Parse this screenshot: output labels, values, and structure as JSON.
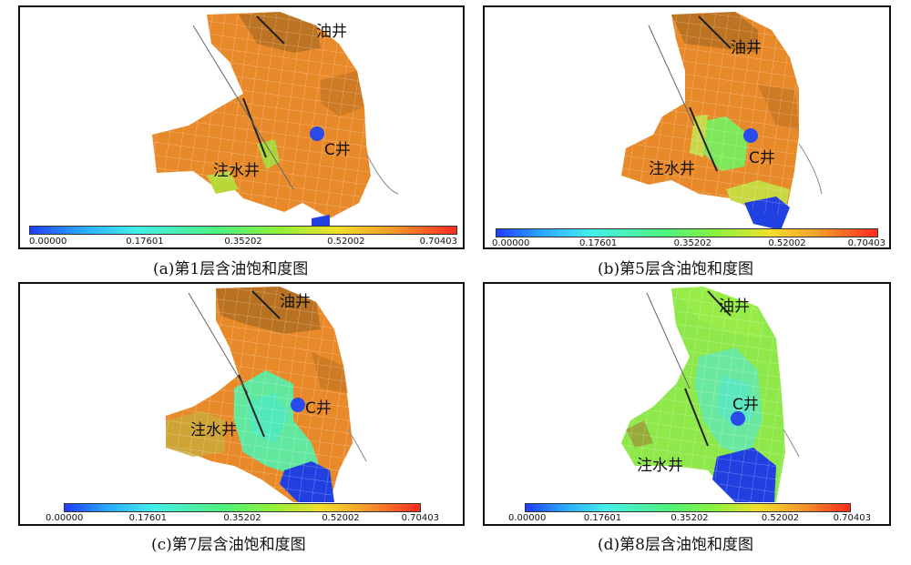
{
  "panels": [
    {
      "id": "a",
      "caption": "(a)第1层含油饱和度图",
      "labels": {
        "oil_well": "油井",
        "c_well": "C井",
        "injection_well": "注水井"
      },
      "colorbar_ticks": [
        "0.00000",
        "0.17601",
        "0.35202",
        "0.52002",
        "0.70403"
      ]
    },
    {
      "id": "b",
      "caption": "(b)第5层含油饱和度图",
      "labels": {
        "oil_well": "油井",
        "c_well": "C井",
        "injection_well": "注水井"
      },
      "colorbar_ticks": [
        "0.00000",
        "0.17601",
        "0.35202",
        "0.52002",
        "0.70403"
      ]
    },
    {
      "id": "c",
      "caption": "(c)第7层含油饱和度图",
      "labels": {
        "oil_well": "油井",
        "c_well": "C井",
        "injection_well": "注水井"
      },
      "colorbar_ticks": [
        "0.00000",
        "0.17601",
        "0.35202",
        "0.52002",
        "0.70403"
      ]
    },
    {
      "id": "d",
      "caption": "(d)第8层含油饱和度图",
      "labels": {
        "oil_well": "油井",
        "c_well": "C井",
        "injection_well": "注水井"
      },
      "colorbar_ticks": [
        "0.00000",
        "0.17601",
        "0.35202",
        "0.52002",
        "0.70403"
      ]
    }
  ],
  "colors": {
    "well_marker": "#2a4bea",
    "high_saturation": "#f08a28",
    "mid_saturation": "#7ef07a",
    "low_saturation": "#1f3cff",
    "border": "#111111"
  }
}
